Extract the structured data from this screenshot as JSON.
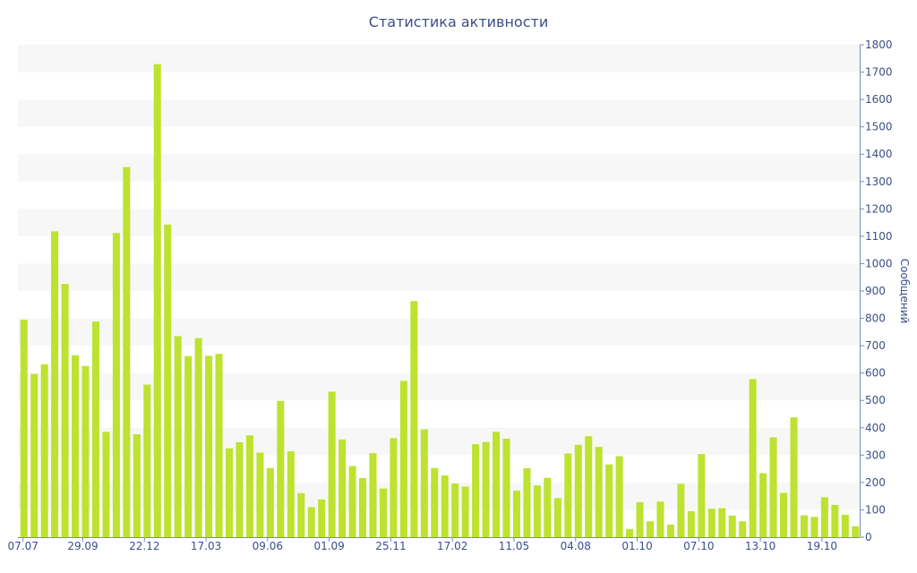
{
  "chart_data": {
    "type": "bar",
    "title": "Статистика активности",
    "ylabel": "Сообщений",
    "xlabel": "",
    "ylim": [
      0,
      1800
    ],
    "ytick_step": 100,
    "y_axis_side": "right",
    "grid": "alternating horizontal bands",
    "bar_color": "#bde22f",
    "band_color": "#f7f7f7",
    "text_color": "#3a4f87",
    "x_tick_labels": [
      "07.07",
      "29.09",
      "22.12",
      "17.03",
      "09.06",
      "01.09",
      "25.11",
      "17.02",
      "11.05",
      "04.08",
      "01.10",
      "07.10",
      "13.10",
      "19.10"
    ],
    "x_tick_bar_index": [
      0,
      6,
      12,
      18,
      24,
      30,
      36,
      42,
      48,
      54,
      60,
      66,
      72,
      78
    ],
    "values": [
      795,
      597,
      632,
      1118,
      926,
      665,
      626,
      788,
      385,
      1112,
      1353,
      376,
      558,
      1729,
      1143,
      735,
      662,
      728,
      663,
      670,
      325,
      347,
      372,
      309,
      253,
      498,
      314,
      161,
      110,
      138,
      532,
      357,
      260,
      216,
      307,
      178,
      362,
      571,
      863,
      394,
      253,
      226,
      196,
      185,
      340,
      348,
      385,
      360,
      170,
      252,
      189,
      217,
      143,
      306,
      338,
      369,
      330,
      266,
      296,
      30,
      128,
      58,
      130,
      46,
      195,
      95,
      304,
      104,
      106,
      79,
      58,
      578,
      234,
      365,
      162,
      438,
      80,
      74,
      146,
      118,
      82,
      40
    ]
  }
}
